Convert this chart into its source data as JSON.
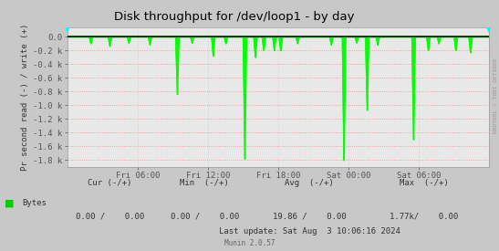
{
  "title": "Disk throughput for /dev/loop1 - by day",
  "ylabel": "Pr second read (-) / write (+)",
  "background_color": "#c8c8c8",
  "plot_bg_color": "#e8e8e8",
  "grid_color_h": "#ff8888",
  "grid_color_v": "#cccccc",
  "line_color": "#00ff00",
  "border_color": "#aaaaaa",
  "top_line_color": "#111111",
  "ylim": [
    -1900,
    130
  ],
  "yticks": [
    0,
    -200,
    -400,
    -600,
    -800,
    -1000,
    -1200,
    -1400,
    -1600,
    -1800
  ],
  "ytick_labels": [
    "0.0",
    "-0.2 k",
    "-0.4 k",
    "-0.6 k",
    "-0.8 k",
    "-1.0 k",
    "-1.2 k",
    "-1.4 k",
    "-1.6 k",
    "-1.8 k"
  ],
  "xtick_positions": [
    0.167,
    0.333,
    0.5,
    0.667,
    0.833
  ],
  "xtick_labels": [
    "Fri 06:00",
    "Fri 12:00",
    "Fri 18:00",
    "Sat 00:00",
    "Sat 06:00"
  ],
  "right_label": "RRDTOOL / TOBI OETIKER",
  "legend_label": "Bytes",
  "legend_color": "#00cc00",
  "footer_update": "Last update: Sat Aug  3 10:06:16 2024",
  "footer_munin": "Munin 2.0.57",
  "spike_x": [
    0.055,
    0.1,
    0.145,
    0.195,
    0.26,
    0.295,
    0.345,
    0.375,
    0.42,
    0.445,
    0.465,
    0.49,
    0.505,
    0.545,
    0.625,
    0.655,
    0.685,
    0.71,
    0.735,
    0.82,
    0.855,
    0.88,
    0.92,
    0.955
  ],
  "spike_y": [
    -100,
    -140,
    -90,
    -120,
    -840,
    -90,
    -280,
    -100,
    -1780,
    -300,
    -200,
    -200,
    -200,
    -100,
    -120,
    -1800,
    -90,
    -1070,
    -120,
    -1500,
    -200,
    -100,
    -200,
    -230
  ],
  "n_points": 2000
}
